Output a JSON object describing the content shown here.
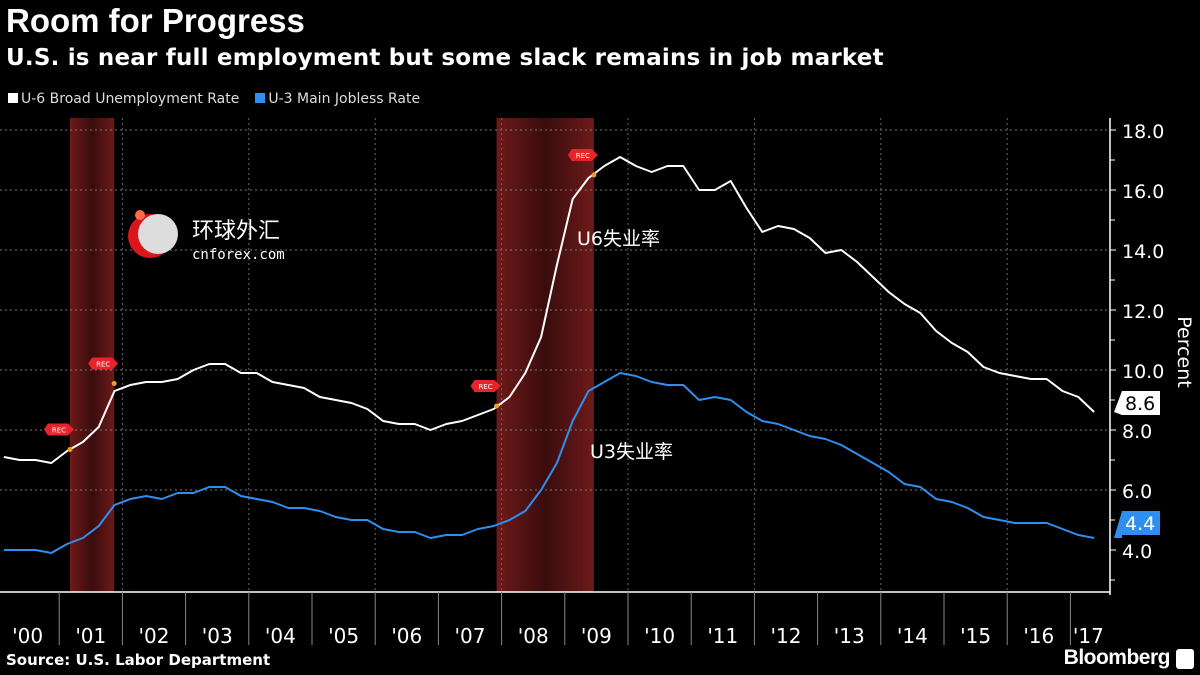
{
  "header": {
    "title": "Room for Progress",
    "subtitle": "U.S. is near full employment but some slack remains in job market"
  },
  "footer": {
    "source": "Source: U.S. Labor Department",
    "brand": "Bloomberg"
  },
  "watermark": {
    "chinese": "环球外汇",
    "latin": "cnforex.com"
  },
  "annotations": {
    "u6": "U6失业率",
    "u3": "U3失业率",
    "rec": "REC"
  },
  "colors": {
    "u6": "#ffffff",
    "u3": "#2f8ff0",
    "recession": "#5a1414"
  },
  "chart_data": {
    "type": "line",
    "title": "Room for Progress",
    "subtitle": "U.S. is near full employment but some slack remains in job market",
    "xlabel": "",
    "ylabel": "Percent",
    "ylim": [
      3,
      18.5
    ],
    "yticks": [
      "18.0",
      "16.0",
      "14.0",
      "12.0",
      "10.0",
      "8.0",
      "6.0",
      "4.0"
    ],
    "ytick_values": [
      18,
      16,
      14,
      12,
      10,
      8,
      6,
      4
    ],
    "xticks": [
      "'00",
      "'01",
      "'02",
      "'03",
      "'04",
      "'05",
      "'06",
      "'07",
      "'08",
      "'09",
      "'10",
      "'11",
      "'12",
      "'13",
      "'14",
      "'15",
      "'16",
      "'17"
    ],
    "legend_position": "top-left",
    "grid": true,
    "recessions": [
      [
        2001.17,
        2001.87
      ],
      [
        2007.92,
        2009.46
      ]
    ],
    "x_start": 2000.0,
    "x_step": 0.25,
    "series": [
      {
        "name": "U-6 Broad Unemployment Rate",
        "last_label": "8.6",
        "values": [
          7.1,
          7.0,
          7.0,
          6.9,
          7.3,
          7.6,
          8.1,
          9.3,
          9.5,
          9.6,
          9.6,
          9.7,
          10.0,
          10.2,
          10.2,
          9.9,
          9.9,
          9.6,
          9.5,
          9.4,
          9.1,
          9.0,
          8.9,
          8.7,
          8.3,
          8.2,
          8.2,
          8.0,
          8.2,
          8.3,
          8.5,
          8.7,
          9.1,
          9.9,
          11.1,
          13.5,
          15.7,
          16.4,
          16.8,
          17.1,
          16.8,
          16.6,
          16.8,
          16.8,
          16.0,
          16.0,
          16.3,
          15.4,
          14.6,
          14.8,
          14.7,
          14.4,
          13.9,
          14.0,
          13.6,
          13.1,
          12.6,
          12.2,
          11.9,
          11.3,
          10.9,
          10.6,
          10.1,
          9.9,
          9.8,
          9.7,
          9.7,
          9.3,
          9.1,
          8.6
        ]
      },
      {
        "name": "U-3 Main Jobless Rate",
        "last_label": "4.4",
        "values": [
          4.0,
          4.0,
          4.0,
          3.9,
          4.2,
          4.4,
          4.8,
          5.5,
          5.7,
          5.8,
          5.7,
          5.9,
          5.9,
          6.1,
          6.1,
          5.8,
          5.7,
          5.6,
          5.4,
          5.4,
          5.3,
          5.1,
          5.0,
          5.0,
          4.7,
          4.6,
          4.6,
          4.4,
          4.5,
          4.5,
          4.7,
          4.8,
          5.0,
          5.3,
          6.0,
          6.9,
          8.3,
          9.3,
          9.6,
          9.9,
          9.8,
          9.6,
          9.5,
          9.5,
          9.0,
          9.1,
          9.0,
          8.6,
          8.3,
          8.2,
          8.0,
          7.8,
          7.7,
          7.5,
          7.2,
          6.9,
          6.6,
          6.2,
          6.1,
          5.7,
          5.6,
          5.4,
          5.1,
          5.0,
          4.9,
          4.9,
          4.9,
          4.7,
          4.5,
          4.4
        ]
      }
    ]
  }
}
